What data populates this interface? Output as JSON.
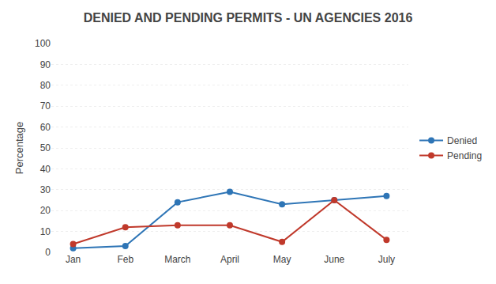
{
  "chart_data": {
    "type": "line",
    "title": "DENIED AND PENDING PERMITS - UN AGENCIES 2016",
    "ylabel": "Percentage",
    "categories": [
      "Jan",
      "Feb",
      "March",
      "April",
      "May",
      "June",
      "July"
    ],
    "series": [
      {
        "name": "Denied",
        "color": "#2e75b6",
        "values": [
          2,
          3,
          24,
          29,
          23,
          25,
          27
        ]
      },
      {
        "name": "Pending",
        "color": "#c0392b",
        "values": [
          4,
          12,
          13,
          13,
          5,
          25,
          6
        ]
      }
    ],
    "ylim": [
      0,
      100
    ],
    "yticks": [
      0,
      10,
      20,
      30,
      40,
      50,
      60,
      70,
      80,
      90,
      100
    ],
    "grid": true,
    "marker": "circle",
    "legend": "right"
  }
}
